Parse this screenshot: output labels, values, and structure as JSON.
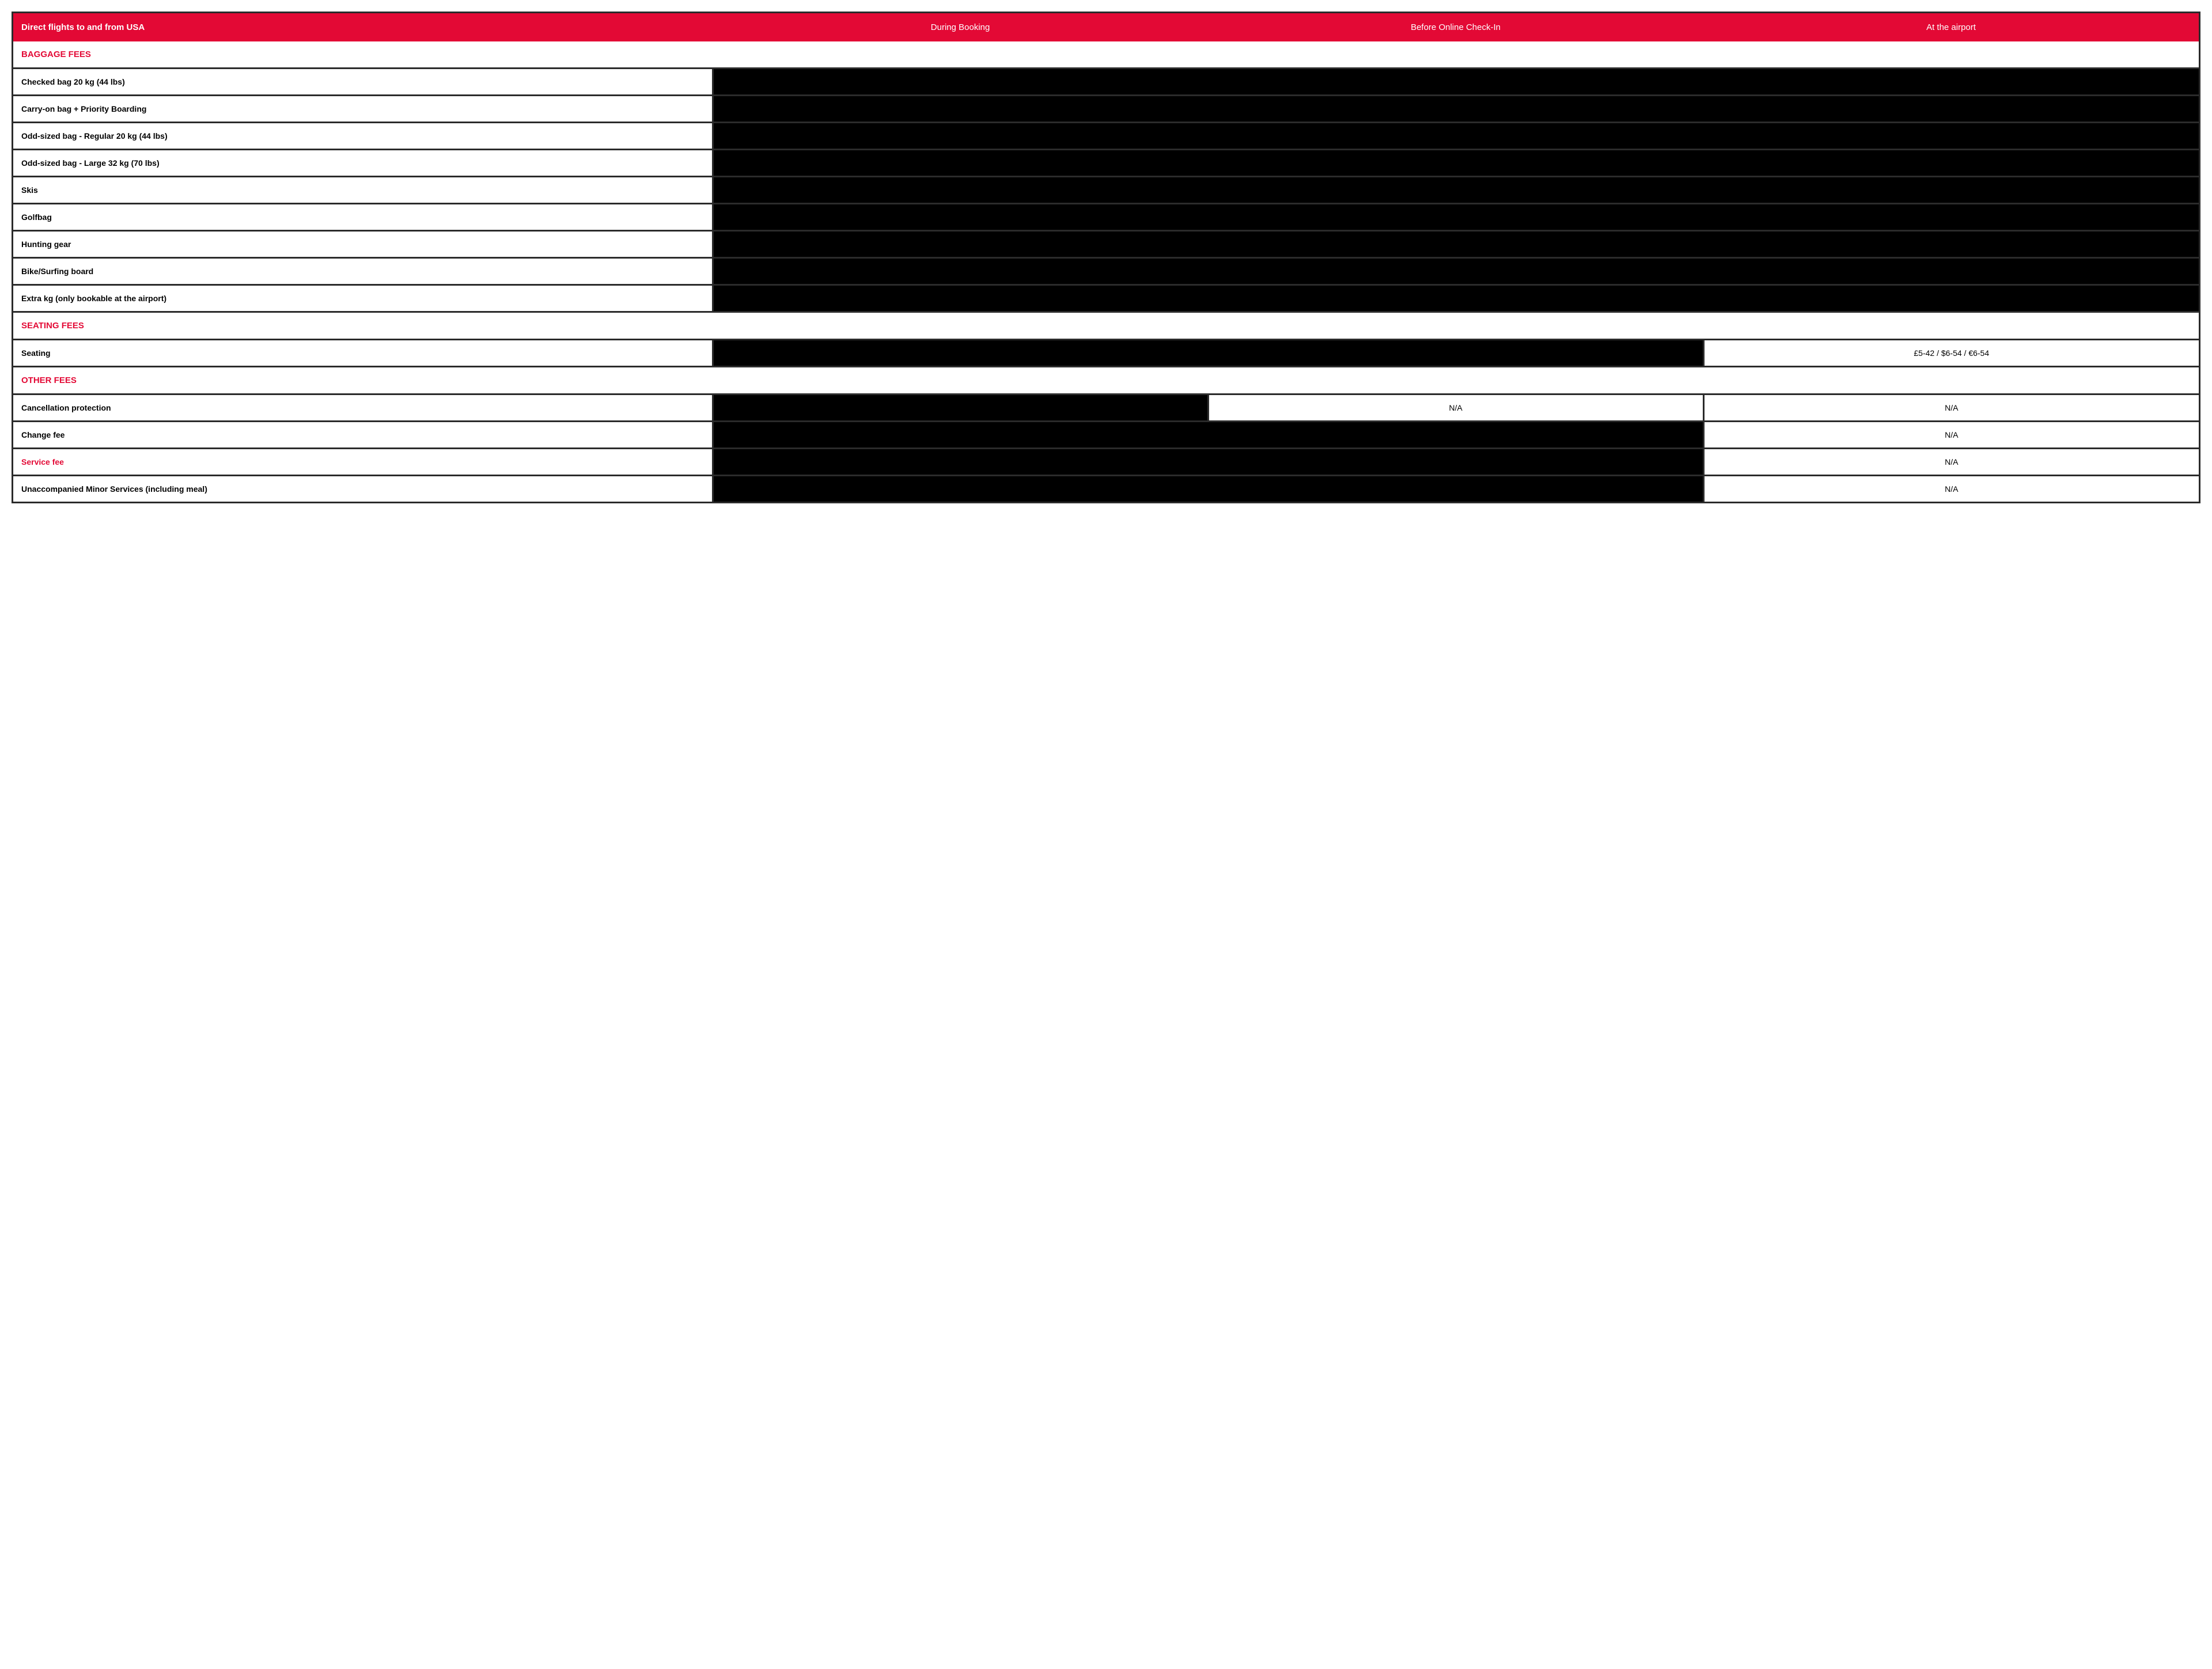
{
  "colors": {
    "header_bg": "#e30935",
    "header_fg": "#ffffff",
    "border": "#2b2b2b",
    "blackout": "#000000",
    "section_fg": "#e30935",
    "cell_bg": "#ffffff",
    "cell_fg": "#000000"
  },
  "header": {
    "title": "Direct flights to and from USA",
    "col1": "During Booking",
    "col2": "Before Online Check-In",
    "col3": "At the airport"
  },
  "sections": {
    "baggage": "BAGGAGE FEES",
    "seating": "SEATING FEES",
    "other": "OTHER FEES"
  },
  "rows": {
    "checked_bag": "Checked bag 20 kg (44 lbs)",
    "carryon": "Carry-on bag + Priority Boarding",
    "odd_regular": "Odd-sized bag - Regular 20 kg (44 lbs)",
    "odd_large": "Odd-sized bag - Large 32 kg (70 lbs)",
    "skis": "Skis",
    "golfbag": "Golfbag",
    "hunting": "Hunting gear",
    "bike": "Bike/Surfing board",
    "extra_kg": "Extra kg (only bookable at the airport)",
    "seating": "Seating",
    "seating_airport": "£5-42 / $6-54 / €6-54",
    "cancellation": "Cancellation protection",
    "change_fee": "Change fee",
    "service_fee": "Service fee",
    "unaccompanied": "Unaccompanied Minor Services (including meal)",
    "na": "N/A"
  }
}
